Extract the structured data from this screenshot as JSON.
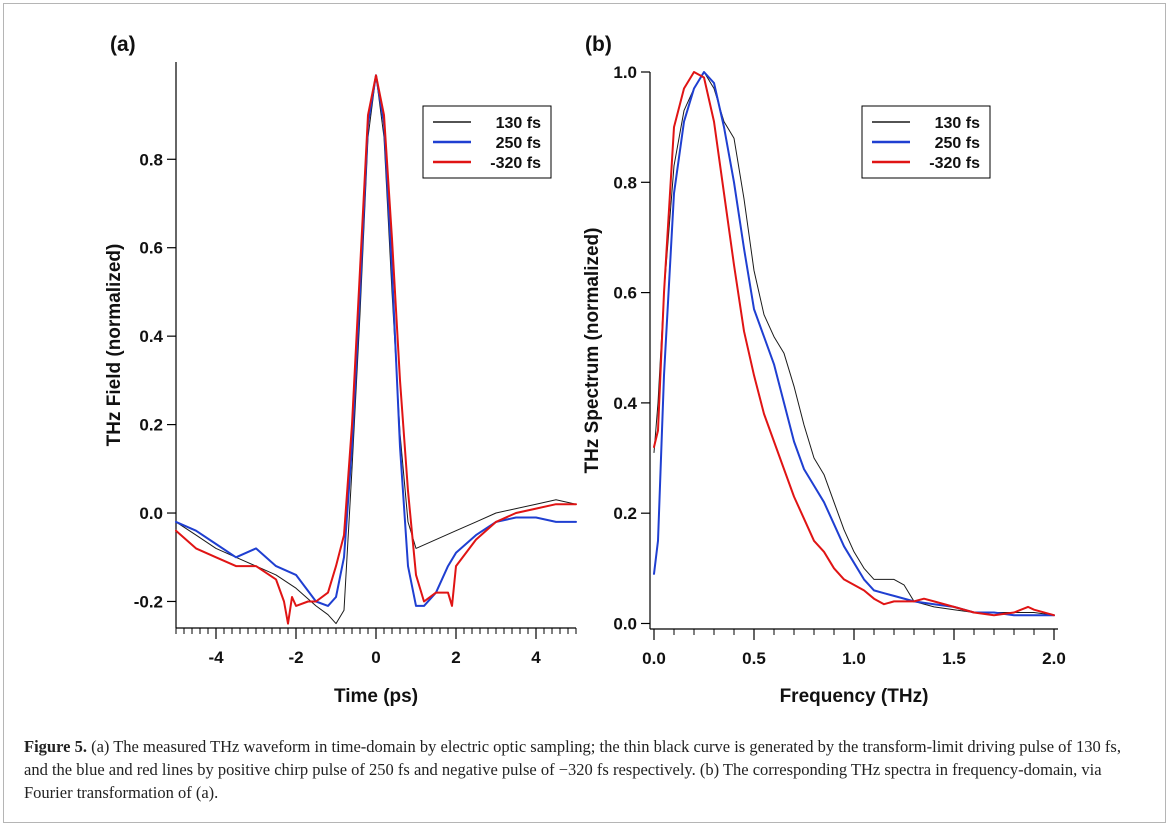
{
  "figure": {
    "caption_label": "Figure 5.",
    "caption_text": " (a) The measured THz waveform in time-domain by electric optic sampling; the thin black curve is generated by the transform-limit driving pulse of 130 fs, and the blue and red lines by positive chirp pulse of 250 fs and negative pulse of −320 fs respectively. (b) The corresponding THz spectra in frequency-domain, via Fourier transformation of (a)."
  },
  "chart_data": [
    {
      "type": "line",
      "panel_label": "(a)",
      "xlabel": "Time (ps)",
      "ylabel": "THz Field (normalized)",
      "xlim": [
        -5,
        5
      ],
      "ylim": [
        -0.26,
        1.02
      ],
      "xticks": [
        -4,
        -2,
        0,
        2,
        4
      ],
      "xtick_labels": [
        "-4",
        "-2",
        "0",
        "2",
        "4"
      ],
      "yticks": [
        -0.2,
        0.0,
        0.2,
        0.4,
        0.6,
        0.8
      ],
      "ytick_labels": [
        "-0.2",
        "0.0",
        "0.2",
        "0.4",
        "0.6",
        "0.8"
      ],
      "legend_position": "top-right",
      "series": [
        {
          "name": "130 fs",
          "color": "#1a1a1a",
          "width": 1.0,
          "x": [
            -5,
            -4.5,
            -4,
            -3.5,
            -3,
            -2.5,
            -2,
            -1.5,
            -1.2,
            -1,
            -0.8,
            -0.6,
            -0.4,
            -0.2,
            0,
            0.2,
            0.4,
            0.6,
            0.8,
            1,
            1.5,
            2,
            2.5,
            3,
            3.5,
            4,
            4.5,
            5
          ],
          "y": [
            -0.02,
            -0.05,
            -0.08,
            -0.1,
            -0.12,
            -0.14,
            -0.17,
            -0.21,
            -0.23,
            -0.25,
            -0.22,
            0.1,
            0.45,
            0.85,
            0.99,
            0.85,
            0.5,
            0.18,
            -0.02,
            -0.08,
            -0.06,
            -0.04,
            -0.02,
            0.0,
            0.01,
            0.02,
            0.03,
            0.02
          ]
        },
        {
          "name": "250 fs",
          "color": "#1f3fd1",
          "width": 2.0,
          "x": [
            -5,
            -4.5,
            -4,
            -3.5,
            -3,
            -2.5,
            -2,
            -1.5,
            -1.2,
            -1,
            -0.8,
            -0.6,
            -0.4,
            -0.2,
            0,
            0.2,
            0.4,
            0.6,
            0.8,
            1,
            1.2,
            1.5,
            1.8,
            2,
            2.5,
            3,
            3.5,
            4,
            4.5,
            5
          ],
          "y": [
            -0.02,
            -0.04,
            -0.07,
            -0.1,
            -0.08,
            -0.12,
            -0.14,
            -0.2,
            -0.21,
            -0.19,
            -0.1,
            0.15,
            0.5,
            0.88,
            0.99,
            0.88,
            0.55,
            0.15,
            -0.12,
            -0.21,
            -0.21,
            -0.18,
            -0.12,
            -0.09,
            -0.05,
            -0.02,
            -0.01,
            -0.01,
            -0.02,
            -0.02
          ]
        },
        {
          "name": "-320 fs",
          "color": "#e01414",
          "width": 2.0,
          "x": [
            -5,
            -4.5,
            -4,
            -3.5,
            -3,
            -2.5,
            -2.3,
            -2.2,
            -2.1,
            -2,
            -1.7,
            -1.5,
            -1.2,
            -1,
            -0.8,
            -0.6,
            -0.4,
            -0.2,
            0,
            0.2,
            0.4,
            0.6,
            0.8,
            1,
            1.2,
            1.5,
            1.8,
            1.9,
            2,
            2.5,
            3,
            3.5,
            4,
            4.5,
            5
          ],
          "y": [
            -0.04,
            -0.08,
            -0.1,
            -0.12,
            -0.12,
            -0.15,
            -0.2,
            -0.25,
            -0.19,
            -0.21,
            -0.2,
            -0.2,
            -0.18,
            -0.12,
            -0.05,
            0.2,
            0.55,
            0.9,
            0.99,
            0.9,
            0.62,
            0.3,
            0.05,
            -0.14,
            -0.2,
            -0.18,
            -0.18,
            -0.21,
            -0.12,
            -0.06,
            -0.02,
            0.0,
            0.01,
            0.02,
            0.02
          ]
        }
      ]
    },
    {
      "type": "line",
      "panel_label": "(b)",
      "xlabel": "Frequency (THz)",
      "ylabel": "THz Spectrum (normalized)",
      "xlim": [
        -0.02,
        2.02
      ],
      "ylim": [
        -0.01,
        1.0
      ],
      "xticks": [
        0.0,
        0.5,
        1.0,
        1.5,
        2.0
      ],
      "xtick_labels": [
        "0.0",
        "0.5",
        "1.0",
        "1.5",
        "2.0"
      ],
      "yticks": [
        0.0,
        0.2,
        0.4,
        0.6,
        0.8,
        1.0
      ],
      "ytick_labels": [
        "0.0",
        "0.2",
        "0.4",
        "0.6",
        "0.8",
        "1.0"
      ],
      "legend_position": "top-right",
      "series": [
        {
          "name": "130 fs",
          "color": "#1a1a1a",
          "width": 1.0,
          "x": [
            0,
            0.02,
            0.05,
            0.1,
            0.15,
            0.2,
            0.25,
            0.3,
            0.35,
            0.4,
            0.45,
            0.5,
            0.55,
            0.6,
            0.65,
            0.7,
            0.75,
            0.8,
            0.85,
            0.9,
            0.95,
            1.0,
            1.05,
            1.1,
            1.15,
            1.2,
            1.25,
            1.3,
            1.4,
            1.5,
            1.6,
            1.7,
            1.8,
            1.9,
            2.0
          ],
          "y": [
            0.31,
            0.4,
            0.6,
            0.83,
            0.93,
            0.97,
            1.0,
            0.97,
            0.91,
            0.88,
            0.77,
            0.64,
            0.56,
            0.52,
            0.49,
            0.43,
            0.36,
            0.3,
            0.27,
            0.22,
            0.17,
            0.13,
            0.1,
            0.08,
            0.08,
            0.08,
            0.07,
            0.04,
            0.03,
            0.025,
            0.02,
            0.02,
            0.02,
            0.02,
            0.015
          ]
        },
        {
          "name": "250 fs",
          "color": "#1f3fd1",
          "width": 2.0,
          "x": [
            0,
            0.02,
            0.05,
            0.1,
            0.15,
            0.2,
            0.25,
            0.3,
            0.35,
            0.4,
            0.45,
            0.5,
            0.55,
            0.6,
            0.65,
            0.7,
            0.75,
            0.8,
            0.85,
            0.9,
            0.95,
            1.0,
            1.05,
            1.1,
            1.15,
            1.2,
            1.3,
            1.4,
            1.5,
            1.6,
            1.7,
            1.8,
            1.9,
            2.0
          ],
          "y": [
            0.09,
            0.15,
            0.45,
            0.78,
            0.91,
            0.97,
            1.0,
            0.98,
            0.9,
            0.8,
            0.68,
            0.57,
            0.52,
            0.47,
            0.4,
            0.33,
            0.28,
            0.25,
            0.22,
            0.18,
            0.14,
            0.11,
            0.08,
            0.06,
            0.055,
            0.05,
            0.04,
            0.035,
            0.03,
            0.02,
            0.02,
            0.015,
            0.015,
            0.015
          ]
        },
        {
          "name": "-320 fs",
          "color": "#e01414",
          "width": 2.0,
          "x": [
            0,
            0.02,
            0.05,
            0.1,
            0.15,
            0.2,
            0.25,
            0.3,
            0.35,
            0.4,
            0.45,
            0.5,
            0.55,
            0.6,
            0.65,
            0.7,
            0.75,
            0.8,
            0.85,
            0.9,
            0.95,
            1.0,
            1.05,
            1.1,
            1.15,
            1.2,
            1.3,
            1.35,
            1.4,
            1.5,
            1.6,
            1.7,
            1.8,
            1.87,
            1.9,
            2.0
          ],
          "y": [
            0.32,
            0.35,
            0.6,
            0.9,
            0.97,
            1.0,
            0.99,
            0.91,
            0.78,
            0.65,
            0.53,
            0.45,
            0.38,
            0.33,
            0.28,
            0.23,
            0.19,
            0.15,
            0.13,
            0.1,
            0.08,
            0.07,
            0.06,
            0.045,
            0.035,
            0.04,
            0.04,
            0.045,
            0.04,
            0.03,
            0.02,
            0.015,
            0.02,
            0.03,
            0.025,
            0.015
          ]
        }
      ]
    }
  ]
}
